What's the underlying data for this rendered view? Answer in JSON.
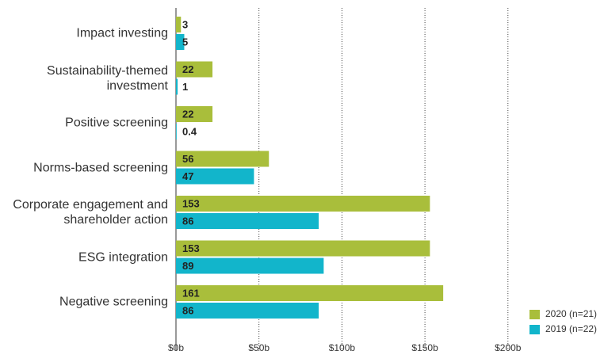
{
  "chart_data": {
    "type": "bar",
    "orientation": "horizontal",
    "categories": [
      "Impact investing",
      "Sustainability-themed investment",
      "Positive screening",
      "Norms-based screening",
      "Corporate engagement and shareholder action",
      "ESG integration",
      "Negative screening"
    ],
    "series": [
      {
        "name": "2020 (n=21)",
        "color": "#a9be3b",
        "values": [
          3,
          22,
          22,
          56,
          153,
          153,
          161
        ]
      },
      {
        "name": "2019 (n=22)",
        "color": "#12b5cb",
        "values": [
          5,
          1,
          0.4,
          47,
          86,
          89,
          86
        ]
      }
    ],
    "xlim": [
      0,
      200
    ],
    "xticks": [
      {
        "value": 0,
        "label": "$0b"
      },
      {
        "value": 50,
        "label": "$50b"
      },
      {
        "value": 100,
        "label": "$100b"
      },
      {
        "value": 150,
        "label": "$150b"
      },
      {
        "value": 200,
        "label": "$200b"
      }
    ],
    "grid": true,
    "legend": "bottom-right"
  }
}
